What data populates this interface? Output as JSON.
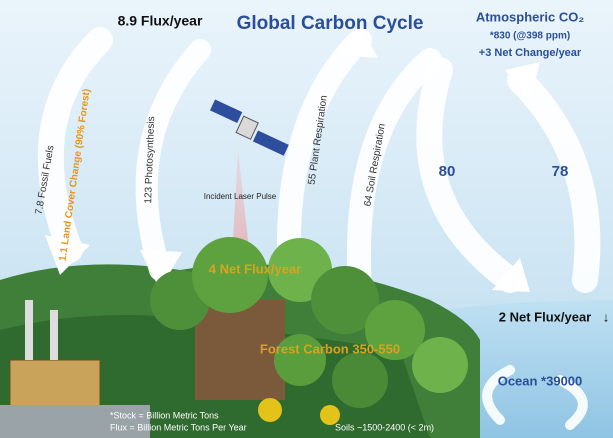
{
  "title": "Global Carbon Cycle",
  "fluxes": {
    "total_flux": "8.9 Flux/year",
    "fossil_fuels": "7.8 Fossil Fuels",
    "land_cover": "1.1 Land Cover Change (90% Forest)",
    "photosynthesis": "123 Photosynthesis",
    "plant_respiration": "55 Plant Respiration",
    "soil_respiration": "64 Soil Respiration",
    "ocean_in": "80",
    "ocean_out": "78",
    "forest_net": "4 Net Flux/year",
    "ocean_net": "2 Net Flux/year"
  },
  "atmosphere": {
    "label": "Atmospheric CO₂",
    "stock": "*830 (@398 ppm)",
    "change": "+3 Net Change/year"
  },
  "laser": "Incident Laser Pulse",
  "forest_carbon": "Forest Carbon 350-550",
  "ocean": "Ocean *39000",
  "notes": {
    "stock": "*Stock = Billion Metric Tons",
    "flux": "Flux = Billion Metric Tons Per Year",
    "soils": "Soils ~1500-2400 (< 2m)"
  }
}
